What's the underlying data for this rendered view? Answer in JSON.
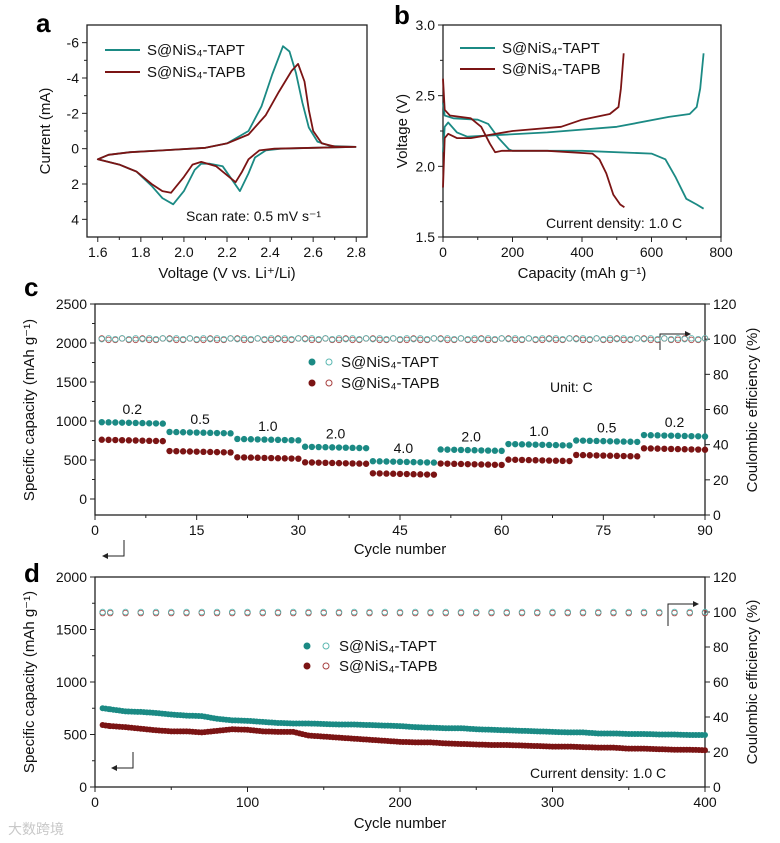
{
  "colors": {
    "tapt": "#1b8a84",
    "tapb": "#7b1414",
    "tapt_ce": "#5bb8b2",
    "tapb_ce": "#a84040"
  },
  "watermark": "大数跨境",
  "chart_data": [
    {
      "panel": "a",
      "type": "line",
      "xlabel": "Voltage (V vs. Li⁺/Li)",
      "ylabel": "Current (mA)",
      "xlim": [
        1.55,
        2.85
      ],
      "ylim": [
        -7,
        5
      ],
      "y_inverted": true,
      "xticks": [
        1.6,
        1.8,
        2.0,
        2.2,
        2.4,
        2.6,
        2.8
      ],
      "xtick_labels": [
        "1.6",
        "1.8",
        "2.0",
        "2.2",
        "2.4",
        "2.6",
        "2.8"
      ],
      "yticks": [
        -6,
        -4,
        -2,
        0,
        2,
        4
      ],
      "ytick_labels": [
        "-6",
        "-4",
        "-2",
        "0",
        "2",
        "4"
      ],
      "legend": [
        "S@NiS₄-TAPT",
        "S@NiS₄-TAPB"
      ],
      "annotation": "Scan rate: 0.5 mV s⁻¹",
      "series": [
        {
          "name": "S@NiS₄-TAPT",
          "color_key": "tapt",
          "points": [
            [
              2.8,
              -0.1
            ],
            [
              2.6,
              -0.05
            ],
            [
              2.45,
              0.0
            ],
            [
              2.38,
              0.1
            ],
            [
              2.33,
              0.5
            ],
            [
              2.3,
              1.4
            ],
            [
              2.26,
              2.4
            ],
            [
              2.22,
              1.7
            ],
            [
              2.18,
              1.0
            ],
            [
              2.12,
              0.85
            ],
            [
              2.08,
              0.85
            ],
            [
              2.05,
              1.2
            ],
            [
              2.0,
              2.4
            ],
            [
              1.95,
              3.15
            ],
            [
              1.9,
              2.8
            ],
            [
              1.85,
              2.1
            ],
            [
              1.78,
              1.3
            ],
            [
              1.7,
              0.9
            ],
            [
              1.6,
              0.6
            ],
            [
              1.65,
              0.35
            ],
            [
              1.75,
              0.2
            ],
            [
              1.9,
              0.1
            ],
            [
              2.1,
              -0.05
            ],
            [
              2.2,
              -0.3
            ],
            [
              2.3,
              -1.0
            ],
            [
              2.36,
              -2.4
            ],
            [
              2.41,
              -4.2
            ],
            [
              2.46,
              -5.8
            ],
            [
              2.49,
              -5.5
            ],
            [
              2.52,
              -4.3
            ],
            [
              2.55,
              -2.6
            ],
            [
              2.58,
              -1.2
            ],
            [
              2.62,
              -0.4
            ],
            [
              2.68,
              -0.15
            ],
            [
              2.8,
              -0.1
            ]
          ]
        },
        {
          "name": "S@NiS₄-TAPB",
          "color_key": "tapb",
          "points": [
            [
              2.8,
              -0.1
            ],
            [
              2.6,
              -0.05
            ],
            [
              2.42,
              0.0
            ],
            [
              2.35,
              0.1
            ],
            [
              2.3,
              0.6
            ],
            [
              2.27,
              1.3
            ],
            [
              2.24,
              1.9
            ],
            [
              2.2,
              1.5
            ],
            [
              2.15,
              1.0
            ],
            [
              2.08,
              0.75
            ],
            [
              2.04,
              0.9
            ],
            [
              2.0,
              1.6
            ],
            [
              1.94,
              2.5
            ],
            [
              1.9,
              2.4
            ],
            [
              1.85,
              2.0
            ],
            [
              1.78,
              1.3
            ],
            [
              1.7,
              0.9
            ],
            [
              1.6,
              0.6
            ],
            [
              1.65,
              0.35
            ],
            [
              1.75,
              0.2
            ],
            [
              1.9,
              0.1
            ],
            [
              2.1,
              -0.05
            ],
            [
              2.2,
              -0.3
            ],
            [
              2.3,
              -0.8
            ],
            [
              2.38,
              -1.9
            ],
            [
              2.44,
              -3.2
            ],
            [
              2.5,
              -4.4
            ],
            [
              2.53,
              -4.8
            ],
            [
              2.56,
              -3.8
            ],
            [
              2.58,
              -2.2
            ],
            [
              2.6,
              -1.0
            ],
            [
              2.64,
              -0.3
            ],
            [
              2.7,
              -0.12
            ],
            [
              2.8,
              -0.1
            ]
          ]
        }
      ]
    },
    {
      "panel": "b",
      "type": "line",
      "xlabel": "Capacity (mAh g⁻¹)",
      "ylabel": "Voltage (V)",
      "xlim": [
        0,
        800
      ],
      "ylim": [
        1.5,
        3.0
      ],
      "xticks": [
        0,
        200,
        400,
        600,
        800
      ],
      "xtick_labels": [
        "0",
        "200",
        "400",
        "600",
        "800"
      ],
      "yticks": [
        1.5,
        2.0,
        2.5,
        3.0
      ],
      "ytick_labels": [
        "1.5",
        "2.0",
        "2.5",
        "3.0"
      ],
      "legend": [
        "S@NiS₄-TAPT",
        "S@NiS₄-TAPB"
      ],
      "annotation": "Current density: 1.0 C",
      "series": [
        {
          "name": "S@NiS₄-TAPT discharge",
          "color_key": "tapt",
          "points": [
            [
              0,
              2.45
            ],
            [
              5,
              2.36
            ],
            [
              30,
              2.34
            ],
            [
              100,
              2.33
            ],
            [
              130,
              2.3
            ],
            [
              160,
              2.2
            ],
            [
              190,
              2.12
            ],
            [
              200,
              2.11
            ],
            [
              400,
              2.11
            ],
            [
              600,
              2.09
            ],
            [
              640,
              2.05
            ],
            [
              670,
              1.92
            ],
            [
              700,
              1.77
            ],
            [
              730,
              1.73
            ],
            [
              750,
              1.7
            ]
          ]
        },
        {
          "name": "S@NiS₄-TAPT charge",
          "color_key": "tapt",
          "points": [
            [
              0,
              2.1
            ],
            [
              5,
              2.28
            ],
            [
              15,
              2.31
            ],
            [
              40,
              2.24
            ],
            [
              70,
              2.21
            ],
            [
              150,
              2.22
            ],
            [
              300,
              2.24
            ],
            [
              500,
              2.28
            ],
            [
              650,
              2.35
            ],
            [
              710,
              2.37
            ],
            [
              730,
              2.42
            ],
            [
              740,
              2.55
            ],
            [
              750,
              2.8
            ]
          ]
        },
        {
          "name": "S@NiS₄-TAPB discharge",
          "color_key": "tapb",
          "points": [
            [
              0,
              2.62
            ],
            [
              5,
              2.4
            ],
            [
              20,
              2.36
            ],
            [
              80,
              2.34
            ],
            [
              110,
              2.28
            ],
            [
              135,
              2.16
            ],
            [
              150,
              2.1
            ],
            [
              170,
              2.11
            ],
            [
              300,
              2.11
            ],
            [
              430,
              2.09
            ],
            [
              450,
              2.05
            ],
            [
              470,
              1.95
            ],
            [
              490,
              1.8
            ],
            [
              510,
              1.73
            ],
            [
              522,
              1.71
            ]
          ]
        },
        {
          "name": "S@NiS₄-TAPB charge",
          "color_key": "tapb",
          "points": [
            [
              0,
              1.85
            ],
            [
              5,
              2.2
            ],
            [
              15,
              2.23
            ],
            [
              40,
              2.2
            ],
            [
              80,
              2.2
            ],
            [
              200,
              2.25
            ],
            [
              340,
              2.28
            ],
            [
              400,
              2.33
            ],
            [
              480,
              2.37
            ],
            [
              505,
              2.42
            ],
            [
              512,
              2.55
            ],
            [
              520,
              2.8
            ]
          ]
        }
      ]
    },
    {
      "panel": "c",
      "type": "scatter",
      "xlabel": "Cycle number",
      "ylabel": "Specific capacity (mAh g⁻¹)",
      "ylabel_right": "Coulombic efficiency (%)",
      "xlim": [
        0,
        90
      ],
      "ylim": [
        -205,
        2500
      ],
      "ylim_right": [
        0,
        120
      ],
      "xticks": [
        0,
        15,
        30,
        45,
        60,
        75,
        90
      ],
      "xtick_labels": [
        "0",
        "15",
        "30",
        "45",
        "60",
        "75",
        "90"
      ],
      "yticks": [
        0,
        500,
        1000,
        1500,
        2000,
        2500
      ],
      "ytick_labels": [
        "0",
        "500",
        "1000",
        "1500",
        "2000",
        "2500"
      ],
      "yticks_right": [
        0,
        20,
        40,
        60,
        80,
        100,
        120
      ],
      "ytick_labels_right": [
        "0",
        "20",
        "40",
        "60",
        "80",
        "100",
        "120"
      ],
      "legend": [
        "S@NiS₄-TAPT",
        "S@NiS₄-TAPB"
      ],
      "annotation": "Unit: C",
      "cycles_per_step": 10,
      "rates": [
        "0.2",
        "0.5",
        "1.0",
        "2.0",
        "4.0",
        "2.0",
        "1.0",
        "0.5",
        "0.2"
      ],
      "capacity_tapt": [
        985,
        860,
        770,
        670,
        485,
        635,
        705,
        750,
        820
      ],
      "capacity_tapb": [
        760,
        615,
        535,
        470,
        330,
        455,
        505,
        565,
        650
      ],
      "coulombic_efficiency": 100
    },
    {
      "panel": "d",
      "type": "scatter",
      "xlabel": "Cycle number",
      "ylabel": "Specific capacity (mAh g⁻¹)",
      "ylabel_right": "Coulombic efficiency (%)",
      "xlim": [
        0,
        400
      ],
      "ylim": [
        0,
        2000
      ],
      "ylim_right": [
        0,
        120
      ],
      "xticks": [
        0,
        100,
        200,
        300,
        400
      ],
      "xtick_labels": [
        "0",
        "100",
        "200",
        "300",
        "400"
      ],
      "yticks": [
        0,
        500,
        1000,
        1500,
        2000
      ],
      "ytick_labels": [
        "0",
        "500",
        "1000",
        "1500",
        "2000"
      ],
      "yticks_right": [
        0,
        20,
        40,
        60,
        80,
        100,
        120
      ],
      "ytick_labels_right": [
        "0",
        "20",
        "40",
        "60",
        "80",
        "100",
        "120"
      ],
      "legend": [
        "S@NiS₄-TAPT",
        "S@NiS₄-TAPB"
      ],
      "annotation": "Current density: 1.0 C",
      "cycles": [
        5,
        10,
        20,
        30,
        40,
        50,
        60,
        70,
        80,
        90,
        100,
        110,
        120,
        130,
        140,
        150,
        160,
        170,
        180,
        190,
        200,
        210,
        220,
        230,
        240,
        250,
        260,
        270,
        280,
        290,
        300,
        310,
        320,
        330,
        340,
        350,
        360,
        370,
        380,
        390,
        400
      ],
      "capacity_tapt": [
        750,
        740,
        720,
        715,
        705,
        690,
        680,
        675,
        650,
        635,
        630,
        620,
        610,
        605,
        605,
        600,
        595,
        595,
        590,
        585,
        580,
        570,
        565,
        560,
        560,
        550,
        545,
        540,
        535,
        530,
        525,
        520,
        520,
        510,
        510,
        505,
        505,
        500,
        500,
        495,
        495
      ],
      "capacity_tapb": [
        590,
        580,
        570,
        555,
        540,
        530,
        530,
        520,
        535,
        550,
        545,
        530,
        525,
        525,
        490,
        480,
        470,
        460,
        450,
        440,
        430,
        425,
        425,
        415,
        410,
        405,
        400,
        400,
        395,
        390,
        385,
        385,
        380,
        375,
        375,
        365,
        365,
        360,
        355,
        355,
        350
      ],
      "coulombic_efficiency": 100
    }
  ]
}
